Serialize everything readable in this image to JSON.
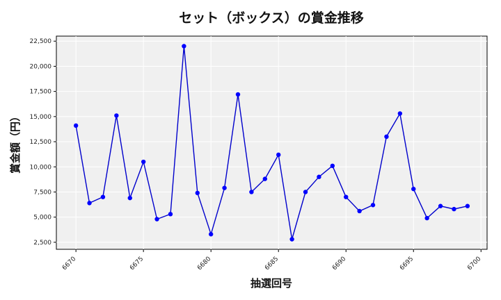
{
  "chart_data": {
    "type": "line",
    "title": "セット（ボックス）の賞金推移",
    "xlabel": "抽選回号",
    "ylabel": "賞金額（円）",
    "x": [
      6670,
      6671,
      6672,
      6673,
      6674,
      6675,
      6676,
      6677,
      6678,
      6679,
      6680,
      6681,
      6682,
      6683,
      6684,
      6685,
      6686,
      6687,
      6688,
      6689,
      6690,
      6691,
      6692,
      6693,
      6694,
      6695,
      6696,
      6697,
      6698,
      6699
    ],
    "series": [
      {
        "values": [
          14100,
          6400,
          7000,
          15100,
          6900,
          10500,
          4800,
          5300,
          22000,
          7400,
          3300,
          7900,
          17200,
          7500,
          8800,
          11200,
          2800,
          7500,
          9000,
          10100,
          7000,
          5600,
          6200,
          13000,
          15300,
          7800,
          4900,
          6100,
          5800,
          6100
        ],
        "color": "#0000cc"
      }
    ],
    "xlim": [
      6668.55,
      6700.45
    ],
    "ylim": [
      1800,
      23000
    ],
    "xticks": [
      6670,
      6675,
      6680,
      6685,
      6690,
      6695,
      6700
    ],
    "xtick_labels": [
      "6670",
      "6675",
      "6680",
      "6685",
      "6690",
      "6695",
      "6700"
    ],
    "yticks": [
      2500,
      5000,
      7500,
      10000,
      12500,
      15000,
      17500,
      20000,
      22500
    ],
    "ytick_labels": [
      "2,500",
      "5,000",
      "7,500",
      "10,000",
      "12,500",
      "15,000",
      "17,500",
      "20,000",
      "22,500"
    ],
    "grid": true,
    "plot_background": "#f0f0f0",
    "grid_color": "#ffffff",
    "line_color": "#0000cc",
    "marker_color": "#0000ff"
  }
}
